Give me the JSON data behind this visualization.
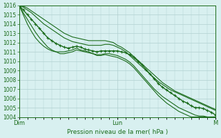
{
  "title": "",
  "xlabel": "Pression niveau de la mer( hPa )",
  "ylabel": "",
  "bg_color": "#d8f0f0",
  "grid_color": "#b0d0d0",
  "line_color": "#1a6b1a",
  "marker_color": "#1a6b1a",
  "ylim": [
    1004,
    1016
  ],
  "xlim": [
    0,
    48
  ],
  "yticks": [
    1004,
    1005,
    1006,
    1007,
    1008,
    1009,
    1010,
    1011,
    1012,
    1013,
    1014,
    1015,
    1016
  ],
  "xtick_positions": [
    0,
    24,
    48
  ],
  "xtick_labels": [
    "Dim",
    "Lun",
    "M"
  ],
  "num_hours": 49,
  "lines": {
    "main": [
      1016,
      1015.5,
      1015.0,
      1014.5,
      1014.0,
      1013.5,
      1013.0,
      1012.5,
      1012.2,
      1011.9,
      1011.7,
      1011.5,
      1011.4,
      1011.5,
      1011.6,
      1011.5,
      1011.3,
      1011.2,
      1011.1,
      1011.0,
      1011.1,
      1011.1,
      1011.1,
      1011.1,
      1011.1,
      1011.0,
      1010.9,
      1010.7,
      1010.4,
      1010.0,
      1009.6,
      1009.1,
      1008.6,
      1008.1,
      1007.6,
      1007.2,
      1006.9,
      1006.6,
      1006.3,
      1006.0,
      1005.7,
      1005.5,
      1005.2,
      1005.0,
      1005.0,
      1004.9,
      1004.7,
      1004.5,
      1004.2
    ],
    "upper1": [
      1016,
      1015.8,
      1015.5,
      1015.2,
      1014.8,
      1014.4,
      1014.0,
      1013.7,
      1013.4,
      1013.1,
      1012.8,
      1012.5,
      1012.3,
      1012.1,
      1012.0,
      1011.9,
      1011.8,
      1011.7,
      1011.7,
      1011.7,
      1011.7,
      1011.8,
      1011.8,
      1011.7,
      1011.5,
      1011.3,
      1011.0,
      1010.6,
      1010.2,
      1009.8,
      1009.4,
      1009.0,
      1008.6,
      1008.2,
      1007.8,
      1007.5,
      1007.2,
      1006.9,
      1006.7,
      1006.5,
      1006.3,
      1006.1,
      1005.9,
      1005.7,
      1005.5,
      1005.3,
      1005.1,
      1004.9,
      1004.7
    ],
    "upper2": [
      1016,
      1015.9,
      1015.7,
      1015.4,
      1015.1,
      1014.8,
      1014.5,
      1014.2,
      1013.9,
      1013.6,
      1013.3,
      1013.0,
      1012.8,
      1012.6,
      1012.5,
      1012.4,
      1012.3,
      1012.2,
      1012.2,
      1012.2,
      1012.2,
      1012.2,
      1012.1,
      1012.0,
      1011.7,
      1011.5,
      1011.2,
      1010.9,
      1010.5,
      1010.1,
      1009.7,
      1009.3,
      1008.9,
      1008.5,
      1008.1,
      1007.7,
      1007.4,
      1007.1,
      1006.8,
      1006.6,
      1006.4,
      1006.2,
      1006.0,
      1005.8,
      1005.6,
      1005.4,
      1005.2,
      1005.0,
      1004.8
    ],
    "lower1": [
      1016,
      1015.2,
      1014.5,
      1013.8,
      1013.1,
      1012.5,
      1012.0,
      1011.5,
      1011.2,
      1011.0,
      1010.8,
      1010.8,
      1010.9,
      1011.0,
      1011.2,
      1011.1,
      1011.0,
      1010.9,
      1010.8,
      1010.7,
      1010.7,
      1010.8,
      1010.8,
      1010.7,
      1010.6,
      1010.4,
      1010.2,
      1009.9,
      1009.5,
      1009.0,
      1008.5,
      1008.0,
      1007.5,
      1007.0,
      1006.6,
      1006.2,
      1005.9,
      1005.6,
      1005.3,
      1005.0,
      1004.8,
      1004.6,
      1004.4,
      1004.2,
      1004.1,
      1004.1,
      1004.0,
      1004.0,
      1004.0
    ],
    "lower2": [
      1016,
      1015.0,
      1014.0,
      1013.2,
      1012.5,
      1012.0,
      1011.6,
      1011.3,
      1011.1,
      1011.0,
      1011.0,
      1011.0,
      1011.1,
      1011.2,
      1011.4,
      1011.2,
      1011.1,
      1011.0,
      1010.8,
      1010.6,
      1010.6,
      1010.7,
      1010.6,
      1010.5,
      1010.4,
      1010.2,
      1010.0,
      1009.7,
      1009.3,
      1008.8,
      1008.3,
      1007.8,
      1007.3,
      1006.8,
      1006.3,
      1005.9,
      1005.5,
      1005.2,
      1004.9,
      1004.6,
      1004.4,
      1004.2,
      1004.0,
      1004.0,
      1004.0,
      1004.0,
      1004.0,
      1004.0,
      1004.0
    ]
  }
}
